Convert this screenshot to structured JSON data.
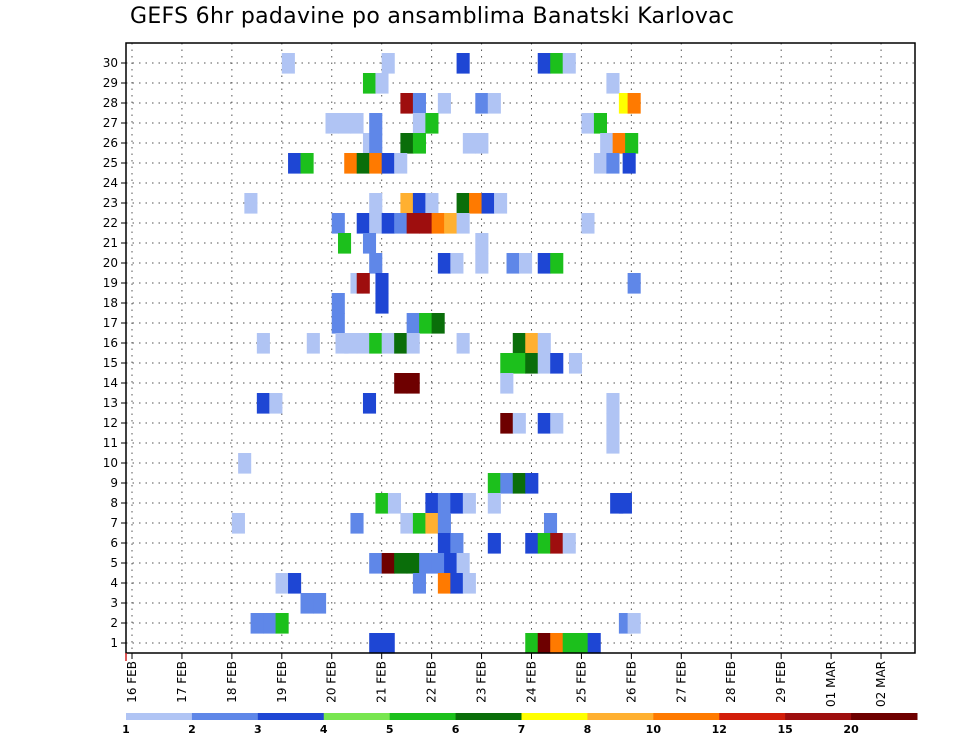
{
  "title": "GEFS 6hr padavine po ansamblima Banatski Karlovac",
  "chart_data": {
    "type": "heatmap",
    "title": "GEFS 6hr padavine po ansamblima Banatski Karlovac",
    "grid": true,
    "y_ticks": [
      1,
      2,
      3,
      4,
      5,
      6,
      7,
      8,
      9,
      10,
      11,
      12,
      13,
      14,
      15,
      16,
      17,
      18,
      19,
      20,
      21,
      22,
      23,
      24,
      25,
      26,
      27,
      28,
      29,
      30
    ],
    "x_ticks": [
      "16 FEB",
      "17 FEB",
      "18 FEB",
      "19 FEB",
      "20 FEB",
      "21 FEB",
      "22 FEB",
      "23 FEB",
      "24 FEB",
      "25 FEB",
      "26 FEB",
      "27 FEB",
      "28 FEB",
      "29 FEB",
      "01 MAR",
      "02 MAR"
    ],
    "steps_per_day": 4,
    "legend": {
      "placement": "bottom",
      "labels": [
        "1",
        "2",
        "3",
        "4",
        "5",
        "6",
        "7",
        "8",
        "10",
        "12",
        "15",
        "20"
      ],
      "colors": [
        "#b0c4f4",
        "#5f87e8",
        "#1e46d4",
        "#78e650",
        "#1cc01c",
        "#0a6e0a",
        "#ffff00",
        "#ffb030",
        "#ff7a00",
        "#d21e0a",
        "#9e0e0e",
        "#6e0000"
      ]
    },
    "cells": [
      [
        30,
        12.5,
        1
      ],
      [
        30,
        20.5,
        1
      ],
      [
        30,
        26.5,
        3
      ],
      [
        30,
        33,
        3
      ],
      [
        30,
        34,
        5
      ],
      [
        30,
        35,
        1
      ],
      [
        29,
        19,
        5
      ],
      [
        29,
        20,
        1
      ],
      [
        29,
        38.5,
        1
      ],
      [
        28,
        22,
        11
      ],
      [
        28,
        23,
        2
      ],
      [
        28,
        25,
        1
      ],
      [
        28,
        28,
        2
      ],
      [
        28,
        29,
        1
      ],
      [
        28,
        39.5,
        7
      ],
      [
        28,
        40.2,
        9
      ],
      [
        27,
        16,
        1
      ],
      [
        27,
        17,
        1
      ],
      [
        27,
        18,
        1
      ],
      [
        27,
        19.5,
        2
      ],
      [
        27,
        23,
        1
      ],
      [
        27,
        24,
        5
      ],
      [
        27,
        36.5,
        1
      ],
      [
        27,
        37.5,
        5
      ],
      [
        26,
        19,
        1
      ],
      [
        26,
        19.5,
        2
      ],
      [
        26,
        22,
        6
      ],
      [
        26,
        23,
        5
      ],
      [
        26,
        27,
        1
      ],
      [
        26,
        28,
        1
      ],
      [
        26,
        38,
        1
      ],
      [
        26,
        39,
        9
      ],
      [
        26,
        40,
        5
      ],
      [
        25,
        13,
        3
      ],
      [
        25,
        14,
        5
      ],
      [
        25,
        17.5,
        9
      ],
      [
        25,
        18.5,
        6
      ],
      [
        25,
        19.5,
        9
      ],
      [
        25,
        20.5,
        3
      ],
      [
        25,
        21.5,
        1
      ],
      [
        25,
        37.5,
        1
      ],
      [
        25,
        38.5,
        2
      ],
      [
        25,
        39.8,
        3
      ],
      [
        23,
        9.5,
        1
      ],
      [
        23,
        19.5,
        1
      ],
      [
        23,
        22,
        8
      ],
      [
        23,
        23,
        3
      ],
      [
        23,
        24,
        1
      ],
      [
        23,
        26.5,
        6
      ],
      [
        23,
        27.5,
        9
      ],
      [
        23,
        28.5,
        3
      ],
      [
        23,
        29.5,
        1
      ],
      [
        22,
        16.5,
        2
      ],
      [
        22,
        18.5,
        3
      ],
      [
        22,
        19.5,
        1
      ],
      [
        22,
        20.5,
        3
      ],
      [
        22,
        21.5,
        2
      ],
      [
        22,
        22.5,
        11
      ],
      [
        22,
        23.5,
        11
      ],
      [
        22,
        24.5,
        9
      ],
      [
        22,
        25.5,
        8
      ],
      [
        22,
        26.5,
        1
      ],
      [
        22,
        36.5,
        1
      ],
      [
        21,
        17,
        5
      ],
      [
        21,
        19,
        2
      ],
      [
        21,
        28,
        1
      ],
      [
        20,
        19.5,
        2
      ],
      [
        20,
        25,
        3
      ],
      [
        20,
        26,
        1
      ],
      [
        20,
        28,
        1
      ],
      [
        20,
        30.5,
        2
      ],
      [
        20,
        31.5,
        1
      ],
      [
        20,
        33,
        3
      ],
      [
        20,
        34,
        5
      ],
      [
        19,
        18,
        1
      ],
      [
        19,
        18.5,
        11
      ],
      [
        19,
        20,
        3
      ],
      [
        19,
        40.2,
        2
      ],
      [
        18,
        16.5,
        2
      ],
      [
        18,
        20,
        3
      ],
      [
        17,
        16.5,
        2
      ],
      [
        17,
        22.5,
        2
      ],
      [
        17,
        23.5,
        5
      ],
      [
        17,
        24.5,
        6
      ],
      [
        16,
        10.5,
        1
      ],
      [
        16,
        14.5,
        1
      ],
      [
        16,
        16.8,
        1
      ],
      [
        16,
        17.5,
        1
      ],
      [
        16,
        18.5,
        1
      ],
      [
        16,
        19.5,
        5
      ],
      [
        16,
        20.5,
        1
      ],
      [
        16,
        21.5,
        6
      ],
      [
        16,
        22.5,
        1
      ],
      [
        16,
        26.5,
        1
      ],
      [
        16,
        31,
        6
      ],
      [
        16,
        32,
        8
      ],
      [
        16,
        33,
        1
      ],
      [
        15,
        30,
        5
      ],
      [
        15,
        31,
        5
      ],
      [
        15,
        32,
        6
      ],
      [
        15,
        33,
        1
      ],
      [
        15,
        34,
        3
      ],
      [
        15,
        35.5,
        1
      ],
      [
        14,
        21.5,
        12
      ],
      [
        14,
        22.5,
        12
      ],
      [
        14,
        30,
        1
      ],
      [
        13,
        10.5,
        3
      ],
      [
        13,
        11.5,
        1
      ],
      [
        13,
        19,
        3
      ],
      [
        13,
        38.5,
        1
      ],
      [
        12,
        30,
        12
      ],
      [
        12,
        31,
        1
      ],
      [
        12,
        33,
        3
      ],
      [
        12,
        34,
        1
      ],
      [
        12,
        38.5,
        1
      ],
      [
        11,
        38.5,
        1
      ],
      [
        10,
        9,
        1
      ],
      [
        9,
        29,
        5
      ],
      [
        9,
        30,
        2
      ],
      [
        9,
        31,
        6
      ],
      [
        9,
        32,
        3
      ],
      [
        8,
        20,
        5
      ],
      [
        8,
        21,
        1
      ],
      [
        8,
        24,
        3
      ],
      [
        8,
        25,
        2
      ],
      [
        8,
        26,
        3
      ],
      [
        8,
        27,
        1
      ],
      [
        8,
        29,
        1
      ],
      [
        8,
        38.8,
        3
      ],
      [
        8,
        39.5,
        3
      ],
      [
        7,
        8.5,
        1
      ],
      [
        7,
        18,
        2
      ],
      [
        7,
        22,
        1
      ],
      [
        7,
        23,
        5
      ],
      [
        7,
        24,
        8
      ],
      [
        7,
        25,
        2
      ],
      [
        7,
        33.5,
        2
      ],
      [
        6,
        25,
        3
      ],
      [
        6,
        26,
        2
      ],
      [
        6,
        29,
        3
      ],
      [
        6,
        32,
        3
      ],
      [
        6,
        33,
        5
      ],
      [
        6,
        34,
        11
      ],
      [
        6,
        35,
        1
      ],
      [
        5,
        19.5,
        2
      ],
      [
        5,
        20.5,
        12
      ],
      [
        5,
        21.5,
        6
      ],
      [
        5,
        22.5,
        6
      ],
      [
        5,
        23.5,
        2
      ],
      [
        5,
        24.5,
        2
      ],
      [
        5,
        25.5,
        3
      ],
      [
        5,
        26.5,
        1
      ],
      [
        4,
        12,
        1
      ],
      [
        4,
        13,
        3
      ],
      [
        4,
        23,
        2
      ],
      [
        4,
        25,
        9
      ],
      [
        4,
        26,
        3
      ],
      [
        4,
        27,
        1
      ],
      [
        3,
        14,
        2
      ],
      [
        3,
        15,
        2
      ],
      [
        2,
        10,
        2
      ],
      [
        2,
        11,
        2
      ],
      [
        2,
        12,
        5
      ],
      [
        2,
        39.5,
        2
      ],
      [
        2,
        40.2,
        1
      ],
      [
        1,
        19.5,
        3
      ],
      [
        1,
        20.5,
        3
      ],
      [
        1,
        32,
        5
      ],
      [
        1,
        33,
        12
      ],
      [
        1,
        34,
        9
      ],
      [
        1,
        35,
        5
      ],
      [
        1,
        36,
        5
      ],
      [
        1,
        37,
        3
      ]
    ]
  }
}
